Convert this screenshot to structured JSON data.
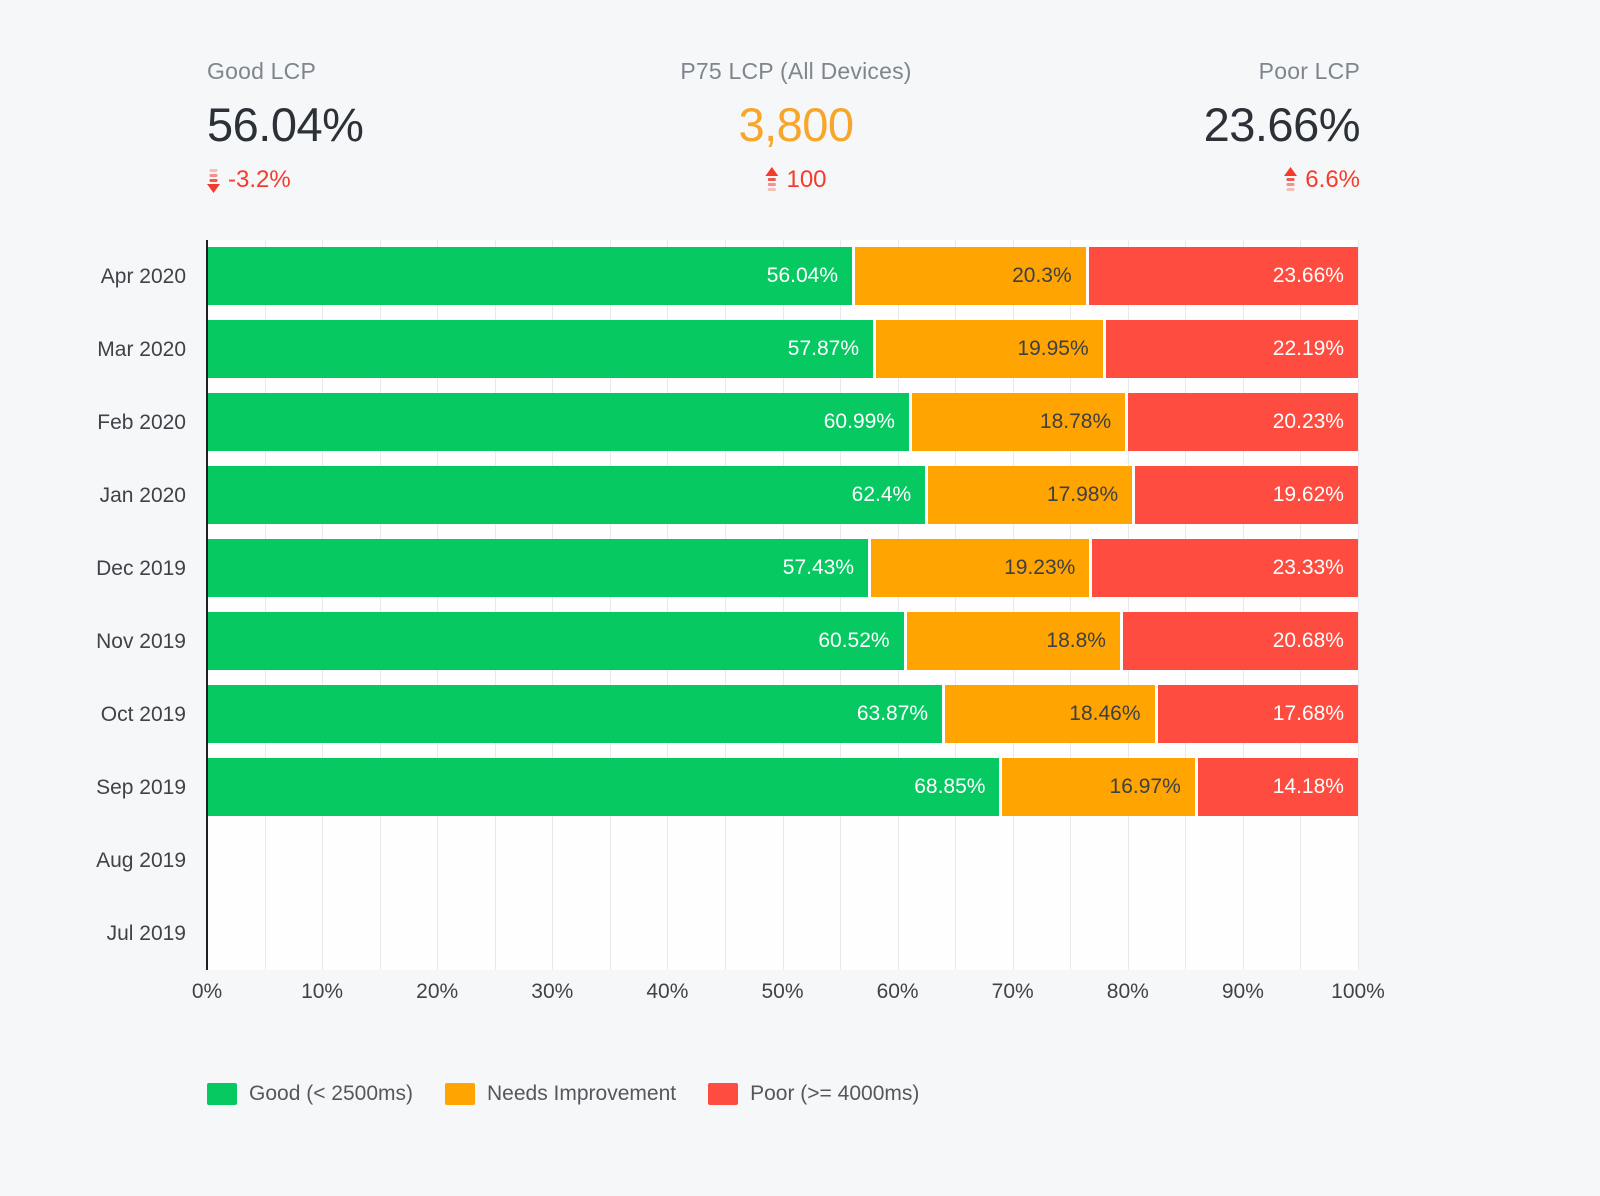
{
  "stats": {
    "good": {
      "label": "Good LCP",
      "value": "56.04%",
      "delta": "-3.2%",
      "direction": "down"
    },
    "p75": {
      "label": "P75 LCP (All Devices)",
      "value": "3,800",
      "delta": "100",
      "direction": "up"
    },
    "poor": {
      "label": "Poor LCP",
      "value": "23.66%",
      "delta": "6.6%",
      "direction": "up"
    }
  },
  "colors": {
    "good": "#07c962",
    "needs_improvement": "#ffa400",
    "poor": "#ff4c40",
    "delta_text": "#f43b2c",
    "p75_value": "#f7a62a"
  },
  "chart_data": {
    "type": "bar",
    "stacked": true,
    "orientation": "horizontal",
    "title": "",
    "xlabel": "",
    "ylabel": "",
    "xlim": [
      0,
      100
    ],
    "gridline_step_pct": 5,
    "grid": true,
    "legend_position": "bottom",
    "categories": [
      "Apr 2020",
      "Mar 2020",
      "Feb 2020",
      "Jan 2020",
      "Dec 2019",
      "Nov 2019",
      "Oct 2019",
      "Sep 2019",
      "Aug 2019",
      "Jul 2019"
    ],
    "series": [
      {
        "name": "Good (< 2500ms)",
        "color": "#07c962",
        "label_color": "#ffffff",
        "values": [
          56.04,
          57.87,
          60.99,
          62.4,
          57.43,
          60.52,
          63.87,
          68.85,
          null,
          null
        ]
      },
      {
        "name": "Needs Improvement",
        "color": "#ffa400",
        "label_color": "#3d4045",
        "values": [
          20.3,
          19.95,
          18.78,
          17.98,
          19.23,
          18.8,
          18.46,
          16.97,
          null,
          null
        ]
      },
      {
        "name": "Poor (>= 4000ms)",
        "color": "#ff4c40",
        "label_color": "#ffffff",
        "values": [
          23.66,
          22.19,
          20.23,
          19.62,
          23.33,
          20.68,
          17.68,
          14.18,
          null,
          null
        ]
      }
    ],
    "x_ticks": [
      "0%",
      "10%",
      "20%",
      "30%",
      "40%",
      "50%",
      "60%",
      "70%",
      "80%",
      "90%",
      "100%"
    ]
  }
}
